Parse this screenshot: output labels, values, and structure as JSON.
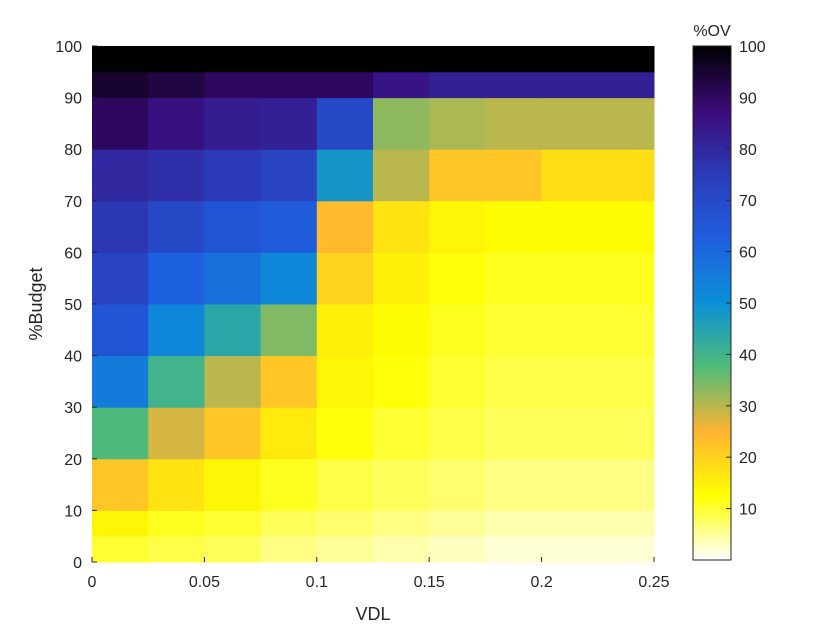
{
  "chart_data": {
    "type": "heatmap",
    "xlabel": "VDL",
    "ylabel": "%Budget",
    "xlim": [
      0,
      0.25
    ],
    "ylim": [
      0,
      100
    ],
    "x_ticks": [
      0,
      0.05,
      0.1,
      0.15,
      0.2,
      0.25
    ],
    "x_tick_labels": [
      "0",
      "0.05",
      "0.1",
      "0.15",
      "0.2",
      "0.25"
    ],
    "y_ticks": [
      0,
      10,
      20,
      30,
      40,
      50,
      60,
      70,
      80,
      90,
      100
    ],
    "y_tick_labels": [
      "0",
      "10",
      "20",
      "30",
      "40",
      "50",
      "60",
      "70",
      "80",
      "90",
      "100"
    ],
    "colorbar": {
      "title": "%OV",
      "lim": [
        0,
        100
      ],
      "ticks": [
        10,
        20,
        30,
        40,
        50,
        60,
        70,
        80,
        90,
        100
      ],
      "tick_labels": [
        "10",
        "20",
        "30",
        "40",
        "50",
        "60",
        "70",
        "80",
        "90",
        "100"
      ],
      "colormap": [
        "#ffffff",
        "#ffff00",
        "#ffb431",
        "#50bc78",
        "#0b8fd6",
        "#1f5fe0",
        "#2b3bb8",
        "#3a0a78",
        "#000000"
      ]
    },
    "grid": false,
    "x_bins": [
      0,
      0.025,
      0.05,
      0.075,
      0.1,
      0.125,
      0.15,
      0.175,
      0.2,
      0.25
    ],
    "y_bins": [
      0,
      5,
      10,
      20,
      30,
      40,
      50,
      60,
      70,
      80,
      90,
      95,
      100
    ],
    "z_values": [
      [
        10,
        9,
        8,
        6,
        5,
        4,
        3,
        2,
        2
      ],
      [
        14,
        11,
        10,
        8,
        7,
        6,
        5,
        4,
        4
      ],
      [
        22,
        17,
        14,
        11,
        9,
        8,
        7,
        6,
        6
      ],
      [
        38,
        28,
        22,
        16,
        12,
        10,
        9,
        8,
        8
      ],
      [
        55,
        40,
        30,
        22,
        14,
        12,
        10,
        9,
        9
      ],
      [
        66,
        52,
        44,
        34,
        15,
        13,
        11,
        10,
        10
      ],
      [
        72,
        62,
        58,
        52,
        20,
        15,
        12,
        11,
        11
      ],
      [
        76,
        70,
        66,
        64,
        24,
        17,
        14,
        13,
        13
      ],
      [
        80,
        78,
        75,
        72,
        48,
        30,
        22,
        22,
        18
      ],
      [
        90,
        86,
        83,
        82,
        70,
        33,
        31,
        30,
        30
      ],
      [
        95,
        93,
        90,
        90,
        90,
        85,
        82,
        82,
        82
      ],
      [
        100,
        100,
        100,
        100,
        100,
        100,
        100,
        100,
        100
      ]
    ]
  }
}
